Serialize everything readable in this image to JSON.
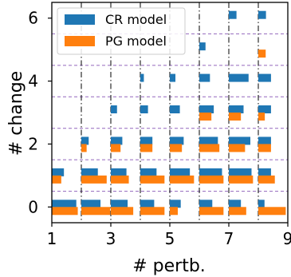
{
  "chart_data": {
    "type": "bar",
    "orientation": "horizontal-histograms",
    "xlabel": "# pertb.",
    "ylabel": "# change",
    "x_ticks": [
      1,
      3,
      5,
      7,
      9
    ],
    "y_ticks": [
      0,
      2,
      4,
      6
    ],
    "xlim": [
      1,
      9
    ],
    "ylim": [
      -0.5,
      6.5
    ],
    "grid": {
      "vertical_dashdot_at": [
        2,
        3,
        4,
        5,
        6,
        7,
        8
      ],
      "horizontal_dashed_at": [
        0.5,
        1.5,
        2.5,
        3.5,
        4.5,
        5.5
      ],
      "horizontal_color": "#9467bd"
    },
    "legend": {
      "position": "top-left"
    },
    "colors": {
      "cr": "#1f77b4",
      "pg": "#ff7f0e"
    },
    "series": [
      {
        "name": "CR model",
        "groups": [
          {
            "pertb": 1,
            "bins": [
              [
                0,
                0.83
              ],
              [
                1,
                0.41
              ]
            ]
          },
          {
            "pertb": 2,
            "bins": [
              [
                0,
                0.65
              ],
              [
                1,
                0.56
              ],
              [
                2,
                0.25
              ]
            ]
          },
          {
            "pertb": 3,
            "bins": [
              [
                0,
                0.57
              ],
              [
                1,
                0.53
              ],
              [
                2,
                0.39
              ],
              [
                3,
                0.21
              ]
            ]
          },
          {
            "pertb": 4,
            "bins": [
              [
                0,
                0.47
              ],
              [
                1,
                0.55
              ],
              [
                2,
                0.41
              ],
              [
                3,
                0.26
              ],
              [
                4,
                0.12
              ]
            ]
          },
          {
            "pertb": 5,
            "bins": [
              [
                0,
                0.37
              ],
              [
                1,
                0.68
              ],
              [
                2,
                0.47
              ],
              [
                3,
                0.34
              ],
              [
                4,
                0.19
              ]
            ]
          },
          {
            "pertb": 6,
            "bins": [
              [
                0,
                0.44
              ],
              [
                1,
                0.77
              ],
              [
                2,
                0.63
              ],
              [
                3,
                0.49
              ],
              [
                4,
                0.36
              ],
              [
                5,
                0.21
              ]
            ]
          },
          {
            "pertb": 7,
            "bins": [
              [
                0,
                0.41
              ],
              [
                1,
                0.77
              ],
              [
                2,
                0.73
              ],
              [
                3,
                0.5
              ],
              [
                4,
                0.67
              ],
              [
                6,
                0.26
              ]
            ]
          },
          {
            "pertb": 8,
            "bins": [
              [
                0,
                0.21
              ],
              [
                1,
                0.43
              ],
              [
                2,
                0.43
              ],
              [
                3,
                0.43
              ],
              [
                4,
                0.43
              ],
              [
                6,
                0.26
              ]
            ]
          }
        ]
      },
      {
        "name": "PG model",
        "groups": [
          {
            "pertb": 1,
            "bins": [
              [
                0,
                0.88
              ],
              [
                1,
                0.32
              ]
            ]
          },
          {
            "pertb": 2,
            "bins": [
              [
                0,
                0.98
              ],
              [
                1,
                0.86
              ],
              [
                2,
                0.18
              ]
            ]
          },
          {
            "pertb": 3,
            "bins": [
              [
                0,
                0.76
              ],
              [
                1,
                0.61
              ],
              [
                2,
                0.33
              ]
            ]
          },
          {
            "pertb": 4,
            "bins": [
              [
                0,
                0.82
              ],
              [
                1,
                0.82
              ],
              [
                2,
                0.41
              ]
            ]
          },
          {
            "pertb": 5,
            "bins": [
              [
                0,
                0.27
              ],
              [
                1,
                0.82
              ],
              [
                2,
                0.41
              ]
            ]
          },
          {
            "pertb": 6,
            "bins": [
              [
                0,
                0.82
              ],
              [
                1,
                0.82
              ],
              [
                2,
                0.68
              ],
              [
                3,
                0.41
              ]
            ]
          },
          {
            "pertb": 7,
            "bins": [
              [
                0,
                0.59
              ],
              [
                1,
                0.82
              ],
              [
                2,
                0.55
              ],
              [
                3,
                0.41
              ]
            ]
          },
          {
            "pertb": 8,
            "bins": [
              [
                0,
                0.93
              ],
              [
                1,
                0.56
              ],
              [
                2,
                0.43
              ],
              [
                3,
                0.22
              ],
              [
                5,
                0.25
              ]
            ]
          }
        ]
      }
    ]
  }
}
